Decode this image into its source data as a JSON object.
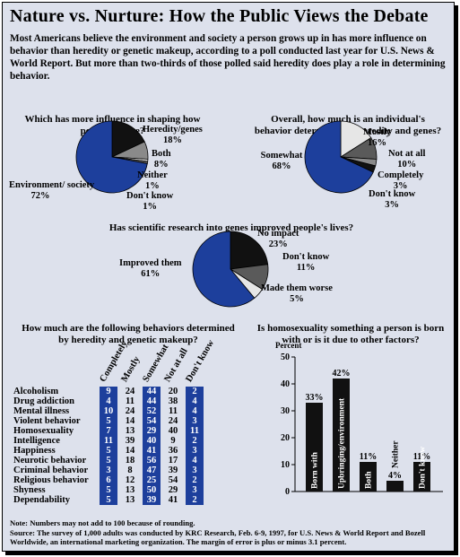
{
  "title": "Nature vs. Nurture:  How the Public Views the Debate",
  "intro": "Most Americans believe the environment and society a person grows up in has more influence on behavior than heredity or genetic makeup, according to a poll conducted last year for U.S. News & World Report. But more than two-thirds of those polled said heredity does play a role in determining behavior.",
  "colors": {
    "dark_blue": "#1d3f9c",
    "black": "#111111",
    "gray": "#8a8a8a",
    "light_gray": "#e6e6e6",
    "mid_gray": "#5a5a5a",
    "background": "#dde1ec"
  },
  "chart_data": [
    {
      "type": "pie",
      "question": "Which has more influence in shaping how people behave?",
      "slices": [
        {
          "label": "Heredity/genes",
          "value": 18,
          "text": "18%"
        },
        {
          "label": "Both",
          "value": 8,
          "text": "8%"
        },
        {
          "label": "Neither",
          "value": 1,
          "text": "1%"
        },
        {
          "label": "Don't know",
          "value": 1,
          "text": "1%"
        },
        {
          "label": "Environment/ society",
          "value": 72,
          "text": "72%"
        }
      ]
    },
    {
      "type": "pie",
      "question": "Overall, how much is an individual's behavior determined by heredity and genes?",
      "slices": [
        {
          "label": "Mostly",
          "value": 16,
          "text": "16%"
        },
        {
          "label": "Not at all",
          "value": 10,
          "text": "10%"
        },
        {
          "label": "Completely",
          "value": 3,
          "text": "3%"
        },
        {
          "label": "Don't know",
          "value": 3,
          "text": "3%"
        },
        {
          "label": "Somewhat",
          "value": 68,
          "text": "68%"
        }
      ]
    },
    {
      "type": "pie",
      "question": "Has scientific research into genes improved people's lives?",
      "slices": [
        {
          "label": "No impact",
          "value": 23,
          "text": "23%"
        },
        {
          "label": "Don't know",
          "value": 11,
          "text": "11%"
        },
        {
          "label": "Made them worse",
          "value": 5,
          "text": "5%"
        },
        {
          "label": "Improved them",
          "value": 61,
          "text": "61%"
        }
      ]
    },
    {
      "type": "table",
      "question": "How much are the following behaviors determined by heredity and genetic makeup?",
      "columns": [
        "Completely",
        "Mostly",
        "Somewhat",
        "Not at all",
        "Don't know"
      ],
      "rows": [
        {
          "name": "Alcoholism",
          "values": [
            9,
            24,
            44,
            20,
            2
          ]
        },
        {
          "name": "Drug addiction",
          "values": [
            4,
            11,
            44,
            38,
            4
          ]
        },
        {
          "name": "Mental illness",
          "values": [
            10,
            24,
            52,
            11,
            4
          ]
        },
        {
          "name": "Violent behavior",
          "values": [
            5,
            14,
            54,
            24,
            3
          ]
        },
        {
          "name": "Homosexuality",
          "values": [
            7,
            13,
            29,
            40,
            11
          ]
        },
        {
          "name": "Intelligence",
          "values": [
            11,
            39,
            40,
            9,
            2
          ]
        },
        {
          "name": "Happiness",
          "values": [
            5,
            14,
            41,
            36,
            3
          ]
        },
        {
          "name": "Neurotic behavior",
          "values": [
            5,
            18,
            56,
            17,
            4
          ]
        },
        {
          "name": "Criminal behavior",
          "values": [
            3,
            8,
            47,
            39,
            3
          ]
        },
        {
          "name": "Religious behavior",
          "values": [
            6,
            12,
            25,
            54,
            2
          ]
        },
        {
          "name": "Shyness",
          "values": [
            5,
            13,
            50,
            29,
            3
          ]
        },
        {
          "name": "Dependability",
          "values": [
            5,
            13,
            39,
            41,
            2
          ]
        }
      ]
    },
    {
      "type": "bar",
      "question": "Is homosexuality something a person is born with or is it due to other factors?",
      "ylabel": "Percent",
      "ylim": [
        0,
        50
      ],
      "yticks": [
        0,
        10,
        20,
        30,
        40,
        50
      ],
      "categories": [
        "Born with",
        "Upbringing/environment",
        "Both",
        "Neither",
        "Don't know"
      ],
      "values": [
        33,
        42,
        11,
        4,
        11
      ],
      "value_labels": [
        "33%",
        "42%",
        "11%",
        "4%",
        "11%"
      ]
    }
  ],
  "notes": {
    "note": "Note: Numbers may not add to 100 because of rounding.",
    "source": "Source: The survey of 1,000 adults was conducted by KRC Research, Feb. 6-9, 1997, for U.S. News & World Report and Bozell Worldwide, an international marketing organization. The margin of error is plus or minus 3.1 percent."
  }
}
